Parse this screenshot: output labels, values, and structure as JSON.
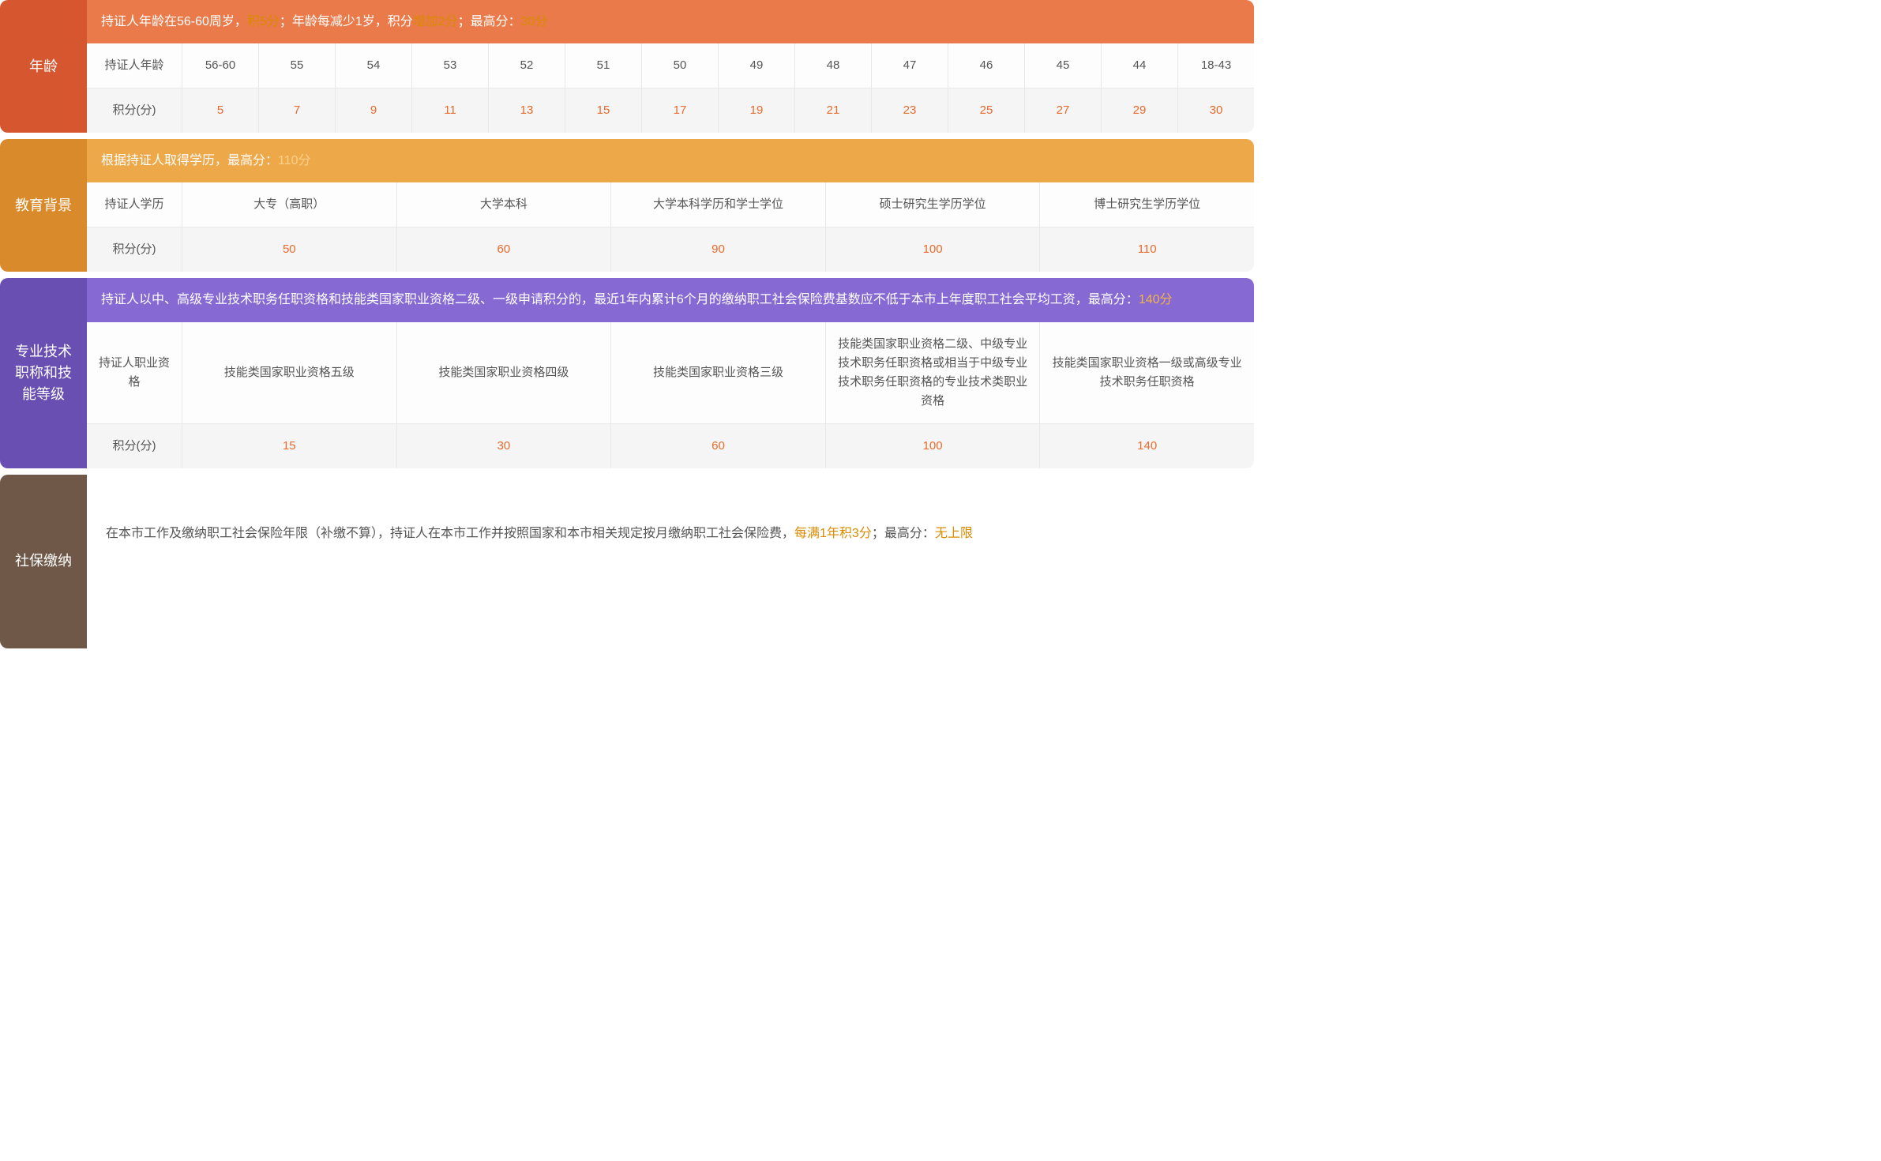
{
  "colors": {
    "age_label_bg": "#d6562f",
    "age_desc_bg": "#ea7a4a",
    "edu_label_bg": "#d98a2b",
    "edu_desc_bg": "#eca849",
    "tech_label_bg": "#6a4fb3",
    "tech_desc_bg": "#8669d2",
    "ins_label_bg": "#6f5847",
    "value_color": "#e86a2c",
    "text_color": "#555555",
    "highlight_color": "#d98b00"
  },
  "age": {
    "label": "年龄",
    "desc_p1": "持证人年龄在56-60周岁，",
    "desc_h1": "积5分",
    "desc_p2": "；年龄每减少1岁，积分",
    "desc_h2": "增加2分",
    "desc_p3": "；最高分：",
    "desc_h3": "30分",
    "row1_label": "持证人年龄",
    "row2_label": "积分(分)",
    "headers": [
      "56-60",
      "55",
      "54",
      "53",
      "52",
      "51",
      "50",
      "49",
      "48",
      "47",
      "46",
      "45",
      "44",
      "18-43"
    ],
    "values": [
      "5",
      "7",
      "9",
      "11",
      "13",
      "15",
      "17",
      "19",
      "21",
      "23",
      "25",
      "27",
      "29",
      "30"
    ]
  },
  "edu": {
    "label": "教育背景",
    "desc_p1": "根据持证人取得学历，最高分：",
    "desc_h1": "110分",
    "row1_label": "持证人学历",
    "row2_label": "积分(分)",
    "headers": [
      "大专（高职）",
      "大学本科",
      "大学本科学历和学士学位",
      "硕士研究生学历学位",
      "博士研究生学历学位"
    ],
    "values": [
      "50",
      "60",
      "90",
      "100",
      "110"
    ]
  },
  "tech": {
    "label": "专业技术职称和技能等级",
    "desc_p1": "持证人以中、高级专业技术职务任职资格和技能类国家职业资格二级、一级申请积分的，最近1年内累计6个月的缴纳职工社会保险费基数应不低于本市上年度职工社会平均工资，最高分：",
    "desc_h1": "140分",
    "row1_label": "持证人职业资格",
    "row2_label": "积分(分)",
    "headers": [
      "技能类国家职业资格五级",
      "技能类国家职业资格四级",
      "技能类国家职业资格三级",
      "技能类国家职业资格二级、中级专业技术职务任职资格或相当于中级专业技术职务任职资格的专业技术类职业资格",
      "技能类国家职业资格一级或高级专业技术职务任职资格"
    ],
    "values": [
      "15",
      "30",
      "60",
      "100",
      "140"
    ]
  },
  "ins": {
    "label": "社保缴纳",
    "desc_p1": "在本市工作及缴纳职工社会保险年限（补缴不算），持证人在本市工作并按照国家和本市相关规定按月缴纳职工社会保险费，",
    "desc_h1": "每满1年积3分",
    "desc_p2": "；最高分：",
    "desc_h2": "无上限"
  }
}
